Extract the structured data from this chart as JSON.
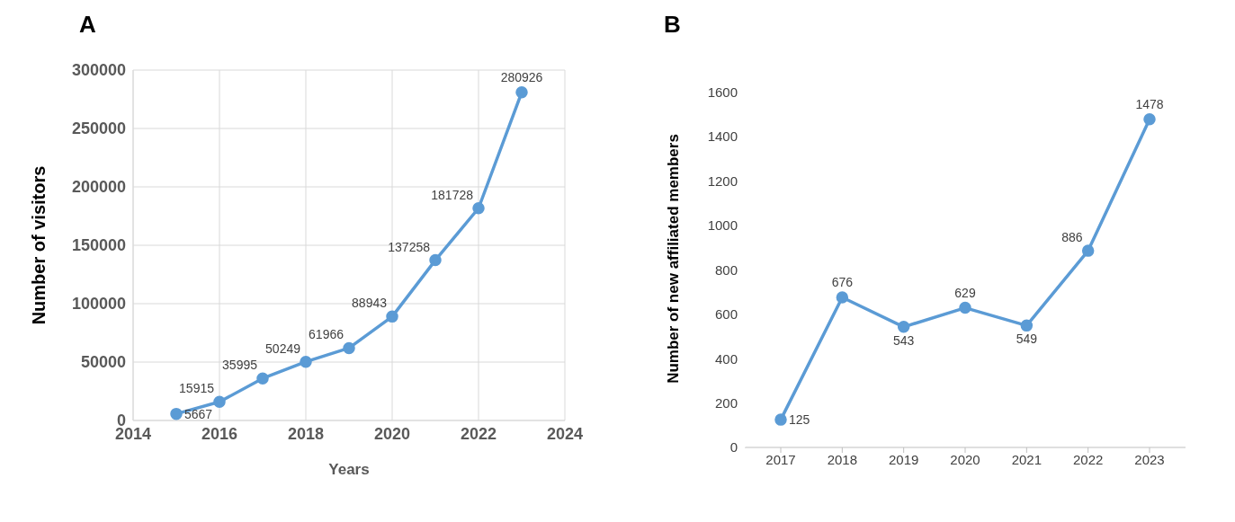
{
  "chart_data": [
    {
      "type": "line",
      "title": "A",
      "xlabel": "Years",
      "ylabel": "Number of visitors",
      "x": [
        2015,
        2016,
        2017,
        2018,
        2019,
        2020,
        2021,
        2022,
        2023
      ],
      "series": [
        {
          "color": "#5b9bd5",
          "values": [
            5667,
            15915,
            35995,
            50249,
            61966,
            88943,
            137258,
            181728,
            280926
          ]
        }
      ],
      "xlim": [
        2014,
        2024
      ],
      "xticks": [
        2014,
        2016,
        2018,
        2020,
        2022,
        2024
      ],
      "ylim": [
        0,
        300000
      ],
      "yticks": [
        0,
        50000,
        100000,
        150000,
        200000,
        250000,
        300000
      ],
      "grid": true,
      "data_labels": true,
      "marker": "circle",
      "legend": false
    },
    {
      "type": "line",
      "title": "B",
      "ylabel": "Number of new affiliated members",
      "categories": [
        "2017",
        "2018",
        "2019",
        "2020",
        "2021",
        "2022",
        "2023"
      ],
      "series": [
        {
          "color": "#5b9bd5",
          "values": [
            125,
            676,
            543,
            629,
            549,
            886,
            1478
          ]
        }
      ],
      "ylim": [
        0,
        1700
      ],
      "yticks": [
        0,
        200,
        400,
        600,
        800,
        1000,
        1200,
        1400,
        1600
      ],
      "grid": false,
      "data_labels": true,
      "marker": "circle",
      "legend": false
    }
  ]
}
